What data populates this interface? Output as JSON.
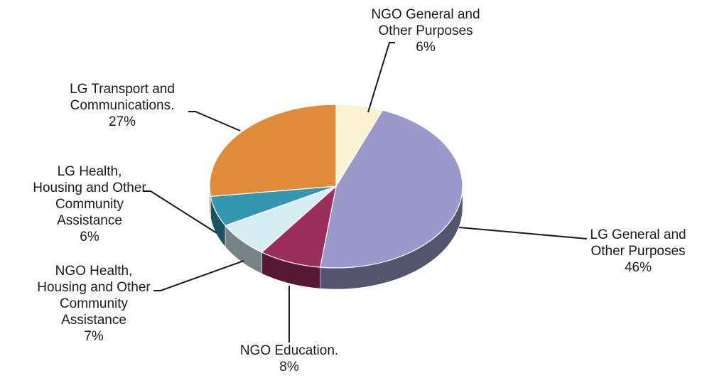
{
  "chart_data": {
    "type": "pie",
    "title": "",
    "style": "3d-tilted",
    "legend": "none",
    "slices": [
      {
        "label": [
          "NGO General and",
          "Other Purposes"
        ],
        "value": 6,
        "display": "6%",
        "color": "#fbf3d0"
      },
      {
        "label": [
          "LG General and",
          "Other Purposes"
        ],
        "value": 46,
        "display": "46%",
        "color": "#9b99cc"
      },
      {
        "label": [
          "NGO Education."
        ],
        "value": 8,
        "display": "8%",
        "color": "#9c2e5e"
      },
      {
        "label": [
          "NGO Health,",
          "Housing and Other",
          "Community",
          "Assistance"
        ],
        "value": 7,
        "display": "7%",
        "color": "#d6edf3"
      },
      {
        "label": [
          "LG Health,",
          "Housing and Other",
          "Community",
          "Assistance"
        ],
        "value": 6,
        "display": "6%",
        "color": "#3397b2"
      },
      {
        "label": [
          "LG Transport and",
          "Communications."
        ],
        "value": 27,
        "display": "27%",
        "color": "#e08b3a"
      }
    ]
  }
}
